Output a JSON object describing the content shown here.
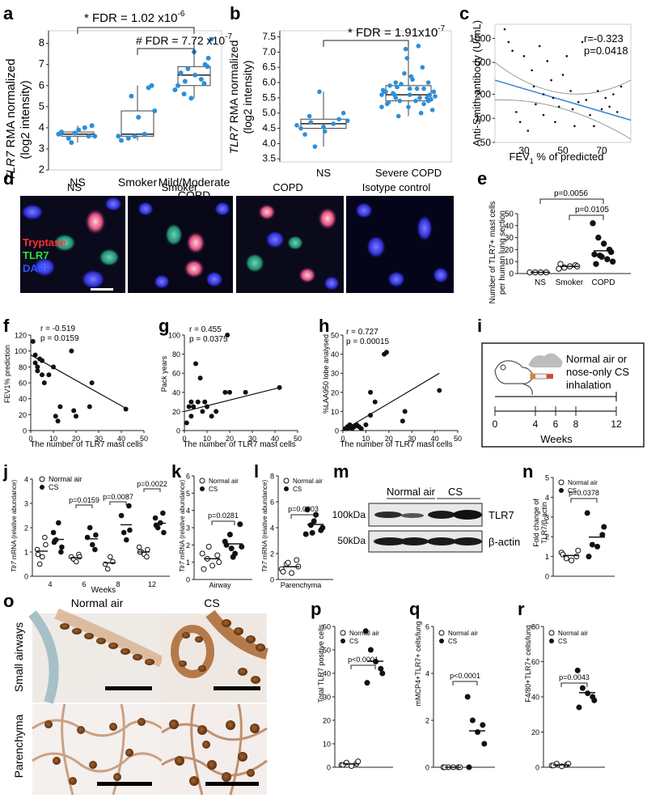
{
  "panel_letters": [
    "a",
    "b",
    "c",
    "d",
    "e",
    "f",
    "g",
    "h",
    "i",
    "j",
    "k",
    "l",
    "m",
    "n",
    "o",
    "p",
    "q",
    "r"
  ],
  "panels": {
    "a": {
      "ylabel_italic": "TLR7",
      "ylabel_rest": " RMA normalized",
      "ylabel2": "(log2 intensity)",
      "yticks": [
        "2",
        "3",
        "4",
        "5",
        "6",
        "7",
        "8"
      ],
      "categories": [
        "NS",
        "Smoker",
        "Mild/Moderate",
        "COPD"
      ],
      "stat1": "* FDR = 1.02 x10",
      "stat1_exp": "-6",
      "stat2": "# FDR = 7.72 x10",
      "stat2_exp": "-7"
    },
    "b": {
      "ylabel_italic": "TLR7",
      "ylabel_rest": " RMA normalized",
      "ylabel2": "(log2 intensity)",
      "yticks": [
        "3.5",
        "4.0",
        "4.5",
        "5.0",
        "5.5",
        "6.0",
        "6.5",
        "7.0",
        "7.5"
      ],
      "categories": [
        "NS",
        "Severe COPD"
      ],
      "stat1": "* FDR = 1.91x10",
      "stat1_exp": "-7"
    },
    "c": {
      "ylabel": "Anti-Smith antibody (U/mL)",
      "yticks": [
        "50",
        "100",
        "200",
        "500",
        "1000"
      ],
      "xticks": [
        "30",
        "50",
        "70"
      ],
      "xlabel_pre": "FEV",
      "xlabel_sub": "1",
      "xlabel_post": " % of predicted",
      "r_text": "r=-0.323",
      "p_text": "p=0.0418"
    },
    "d": {
      "titles": [
        "NS",
        "Smoker",
        "COPD",
        "Isotype control"
      ],
      "legend": [
        "Tryptase",
        "TLR7",
        "DAPI"
      ]
    },
    "e": {
      "ylabel": "Number of TLR7+ mast cells",
      "ylabel2": "per human lung section",
      "yticks": [
        "0",
        "10",
        "20",
        "30",
        "40",
        "50"
      ],
      "categories": [
        "NS",
        "Smoker",
        "COPD"
      ],
      "p1": "p=0.0056",
      "p2": "p=0.0105"
    },
    "f": {
      "ylabel": "FEV1% prediction",
      "xlabel": "The number of TLR7 mast cells",
      "yticks": [
        "0",
        "20",
        "40",
        "60",
        "80",
        "100",
        "120"
      ],
      "xticks": [
        "0",
        "10",
        "20",
        "30",
        "40",
        "50"
      ],
      "r_text": "r = -0.519",
      "p_text": "p = 0.0159"
    },
    "g": {
      "ylabel": "Pack years",
      "xlabel": "The number of TLR7 mast cells",
      "yticks": [
        "0",
        "20",
        "40",
        "60",
        "80",
        "100"
      ],
      "xticks": [
        "0",
        "10",
        "20",
        "30",
        "40",
        "50"
      ],
      "r_text": "r = 0.455",
      "p_text": "p = 0.0375"
    },
    "h": {
      "ylabel": "%LAA950 lobe analysed",
      "xlabel": "The number of TLR7 mast cells",
      "yticks": [
        "0",
        "10",
        "20",
        "30",
        "40",
        "50"
      ],
      "xticks": [
        "0",
        "10",
        "20",
        "30",
        "40",
        "50"
      ],
      "r_text": "r = 0.727",
      "p_text": "p = 0.00015"
    },
    "i": {
      "label1": "Normal air or",
      "label2": "nose-only CS",
      "label3": "inhalation",
      "xticks": [
        "0",
        "4",
        "6",
        "8",
        "12"
      ],
      "xlabel": "Weeks"
    },
    "j": {
      "ylabel_italic": "Tlr7",
      "ylabel_rest": " mRNA (relative abundance)",
      "yticks": [
        "0",
        "1",
        "2",
        "3",
        "4"
      ],
      "groups": [
        "4",
        "6",
        "8",
        "12"
      ],
      "xlabel": "Weeks",
      "pvals": [
        "p=0.0159",
        "p=0.0087",
        "p=0.0022"
      ],
      "legend": [
        "Normal air",
        "CS"
      ]
    },
    "k": {
      "ylabel_italic": "Tlr7",
      "ylabel_rest": " mRNA (relative abundance)",
      "yticks": [
        "0",
        "1",
        "2",
        "3",
        "4",
        "5",
        "6"
      ],
      "xlabel": "Airway",
      "p": "p=0.0281",
      "legend": [
        "Normal air",
        "CS"
      ]
    },
    "l": {
      "ylabel_italic": "Tlr7",
      "ylabel_rest": " mRNA (relative abundance)",
      "yticks": [
        "0",
        "2",
        "4",
        "6",
        "8"
      ],
      "xlabel": "Parenchyma",
      "p": "p=0.0003",
      "legend": [
        "Normal air",
        "CS"
      ]
    },
    "m": {
      "group1": "Normal air",
      "group2": "CS",
      "mw1": "100kDa",
      "mw2": "50kDa",
      "band1": "TLR7",
      "band2": "β-actin"
    },
    "n": {
      "ylabel": "Fold change of",
      "ylabel2": "TLR7/β-actin",
      "yticks": [
        "0",
        "1",
        "2",
        "3",
        "4",
        "5"
      ],
      "p": "p=0.0378",
      "legend": [
        "Normal air",
        "CS"
      ]
    },
    "o": {
      "col1": "Normal air",
      "col2": "CS",
      "row1": "Small airways",
      "row2": "Parenchyma"
    },
    "p": {
      "ylabel": "Total TLR7 positive cells",
      "yticks": [
        "0",
        "10",
        "20",
        "30",
        "40",
        "50",
        "60"
      ],
      "p": "p<0.0001",
      "legend": [
        "Normal air",
        "CS"
      ]
    },
    "q": {
      "ylabel": "mMCP4+TLR7+ cells/lung",
      "yticks": [
        "0",
        "2",
        "4",
        "6"
      ],
      "p": "p<0.0001",
      "legend": [
        "Normal air",
        "CS"
      ]
    },
    "r": {
      "ylabel": "F4/80+TLR7+ cells/lung",
      "yticks": [
        "0",
        "20",
        "40",
        "60",
        "80"
      ],
      "p": "p=0.0043",
      "legend": [
        "Normal air",
        "CS"
      ]
    }
  },
  "chart_data": [
    {
      "panel": "a",
      "type": "scatter",
      "groups": [
        {
          "category": "NS",
          "values": [
            3.7,
            3.5,
            3.9,
            3.6,
            4.1,
            3.8,
            3.3,
            3.75,
            4.0,
            3.6
          ]
        },
        {
          "category": "Smoker",
          "values": [
            3.6,
            3.5,
            4.5,
            5.9,
            6.0,
            3.4,
            5.5,
            3.6,
            3.7,
            4.8
          ]
        },
        {
          "category": "Mild/Moderate COPD",
          "values": [
            5.8,
            6.2,
            6.5,
            7.0,
            7.3,
            6.0,
            6.8,
            5.4,
            6.3,
            8.2,
            6.6,
            5.6,
            7.6,
            6.1,
            6.9
          ]
        }
      ],
      "ylim": [
        2,
        8.6
      ]
    },
    {
      "panel": "b",
      "type": "scatter",
      "groups": [
        {
          "category": "NS",
          "values": [
            4.6,
            4.7,
            4.4,
            4.8,
            5.0,
            4.5,
            3.9,
            5.7,
            4.65,
            4.75,
            4.3,
            4.9,
            4.55
          ]
        },
        {
          "category": "Severe COPD",
          "values": [
            5.6,
            5.5,
            5.8,
            5.3,
            6.0,
            5.7,
            5.4,
            6.3,
            7.2,
            5.1,
            5.9,
            5.6,
            5.2,
            6.5,
            5.5,
            5.7,
            4.9,
            6.1,
            5.8,
            5.45,
            5.35,
            5.65,
            6.8,
            5.0,
            5.55,
            5.75,
            5.85,
            6.2,
            5.4,
            5.6,
            5.3,
            5.95,
            7.1,
            5.5,
            5.7,
            5.2,
            6.0,
            5.6,
            5.8,
            5.4
          ]
        }
      ],
      "ylim": [
        3.5,
        7.7
      ]
    },
    {
      "panel": "c",
      "type": "scatter",
      "xlim": [
        15,
        85
      ],
      "ylim_log": [
        50,
        1500
      ],
      "x": [
        20,
        22,
        24,
        26,
        28,
        30,
        32,
        34,
        35,
        36,
        38,
        40,
        40,
        42,
        44,
        45,
        46,
        48,
        50,
        52,
        54,
        55,
        56,
        58,
        60,
        62,
        64,
        66,
        68,
        70,
        72,
        74,
        76,
        78,
        80
      ],
      "y": [
        1300,
        900,
        700,
        120,
        90,
        600,
        70,
        400,
        250,
        150,
        800,
        200,
        110,
        520,
        300,
        180,
        90,
        140,
        350,
        600,
        220,
        130,
        80,
        160,
        900,
        170,
        110,
        80,
        220,
        130,
        180,
        140,
        200,
        120,
        250
      ],
      "fit": {
        "x": [
          15,
          85
        ],
        "y": [
          300,
          95
        ]
      }
    },
    {
      "panel": "e",
      "type": "scatter",
      "groups": [
        {
          "category": "NS",
          "values": [
            1,
            1,
            1,
            1
          ]
        },
        {
          "category": "Smoker",
          "values": [
            4,
            5,
            6,
            7,
            6,
            8
          ]
        },
        {
          "category": "COPD",
          "values": [
            42,
            30,
            25,
            20,
            18,
            16,
            15,
            14,
            12,
            10,
            8
          ]
        }
      ],
      "means": [
        1,
        6,
        19
      ],
      "ylim": [
        0,
        50
      ]
    },
    {
      "panel": "f",
      "type": "scatter",
      "xlim": [
        0,
        50
      ],
      "ylim": [
        0,
        120
      ],
      "x": [
        1,
        2,
        2,
        3,
        3,
        4,
        5,
        5,
        6,
        8,
        10,
        11,
        12,
        13,
        18,
        19,
        20,
        26,
        27,
        42
      ],
      "y": [
        112,
        95,
        85,
        80,
        75,
        90,
        70,
        88,
        60,
        70,
        80,
        18,
        12,
        30,
        100,
        25,
        18,
        30,
        60,
        27
      ],
      "fit": {
        "x": [
          0,
          42
        ],
        "y": [
          95,
          28
        ]
      }
    },
    {
      "panel": "g",
      "type": "scatter",
      "xlim": [
        0,
        50
      ],
      "ylim": [
        0,
        100
      ],
      "x": [
        1,
        2,
        3,
        3,
        4,
        5,
        6,
        7,
        8,
        9,
        10,
        12,
        14,
        18,
        19,
        20,
        27,
        42
      ],
      "y": [
        8,
        25,
        15,
        30,
        25,
        70,
        30,
        55,
        20,
        30,
        25,
        15,
        20,
        40,
        100,
        40,
        40,
        45
      ],
      "fit": {
        "x": [
          0,
          42
        ],
        "y": [
          20,
          45
        ]
      }
    },
    {
      "panel": "h",
      "type": "scatter",
      "xlim": [
        0,
        50
      ],
      "ylim": [
        0,
        50
      ],
      "x": [
        1,
        2,
        2,
        3,
        4,
        4,
        5,
        6,
        7,
        8,
        10,
        12,
        12,
        14,
        18,
        19,
        26,
        27,
        42
      ],
      "y": [
        1,
        2,
        1,
        3,
        2,
        1,
        2,
        3,
        2,
        1,
        3,
        20,
        8,
        15,
        40,
        41,
        5,
        10,
        21
      ],
      "fit": {
        "x": [
          0,
          42
        ],
        "y": [
          0,
          30
        ]
      }
    },
    {
      "panel": "j",
      "type": "scatter",
      "ylim": [
        0,
        4
      ],
      "series": [
        {
          "name": "Normal air",
          "groups": [
            [
              1.1,
              0.5,
              0.8,
              1.6,
              1.3,
              0.9
            ],
            [
              0.8,
              0.7,
              0.6,
              0.9,
              0.8
            ],
            [
              0.5,
              0.3,
              0.8,
              0.6
            ],
            [
              1.2,
              1.0,
              0.9,
              0.8,
              1.1,
              1.0
            ]
          ]
        },
        {
          "name": "CS",
          "groups": [
            [
              1.8,
              1.5,
              2.2,
              1.0,
              1.2,
              1.4
            ],
            [
              1.6,
              2.0,
              1.3,
              1.1,
              1.7
            ],
            [
              2.5,
              1.8,
              1.5,
              2.9,
              1.9
            ],
            [
              2.4,
              2.0,
              2.2,
              2.6,
              1.8,
              2.1
            ]
          ]
        }
      ],
      "categories": [
        "4",
        "6",
        "8",
        "12"
      ]
    },
    {
      "panel": "k",
      "type": "scatter",
      "ylim": [
        0,
        6
      ],
      "series": [
        {
          "name": "Normal air",
          "values": [
            1.5,
            1.2,
            0.8,
            1.4,
            1.0,
            0.6,
            1.9
          ]
        },
        {
          "name": "CS",
          "values": [
            2.2,
            2.6,
            1.5,
            3.2,
            1.9,
            2.0,
            1.8,
            1.3
          ]
        }
      ]
    },
    {
      "panel": "l",
      "type": "scatter",
      "ylim": [
        0,
        8
      ],
      "series": [
        {
          "name": "Normal air",
          "values": [
            0.8,
            1.2,
            0.5,
            1.5,
            1.0,
            0.6,
            1.3
          ]
        },
        {
          "name": "CS",
          "values": [
            3.5,
            4.2,
            5.0,
            3.8,
            4.0,
            5.4,
            3.6,
            4.5
          ]
        }
      ]
    },
    {
      "panel": "n",
      "type": "scatter",
      "ylim": [
        0,
        5
      ],
      "series": [
        {
          "name": "Normal air",
          "values": [
            1.2,
            0.9,
            0.8,
            1.0,
            1.3,
            1.1
          ]
        },
        {
          "name": "CS",
          "values": [
            3.2,
            1.6,
            1.5,
            2.1,
            2.5,
            1.0
          ]
        }
      ]
    },
    {
      "panel": "p",
      "type": "scatter",
      "ylim": [
        0,
        60
      ],
      "series": [
        {
          "name": "Normal air",
          "values": [
            1,
            2,
            0.5,
            1.5,
            2.5,
            1
          ]
        },
        {
          "name": "CS",
          "values": [
            58,
            50,
            45,
            42,
            40,
            36
          ]
        }
      ]
    },
    {
      "panel": "q",
      "type": "scatter",
      "ylim": [
        0,
        6
      ],
      "series": [
        {
          "name": "Normal air",
          "values": [
            0,
            0,
            0,
            0,
            0,
            0
          ]
        },
        {
          "name": "CS",
          "values": [
            3.0,
            2.0,
            1.5,
            1.8,
            1.0,
            0
          ]
        }
      ]
    },
    {
      "panel": "r",
      "type": "scatter",
      "ylim": [
        0,
        80
      ],
      "series": [
        {
          "name": "Normal air",
          "values": [
            1,
            2,
            0.5,
            1.5,
            2,
            1
          ]
        },
        {
          "name": "CS",
          "values": [
            55,
            45,
            42,
            40,
            38,
            34
          ]
        }
      ]
    }
  ]
}
